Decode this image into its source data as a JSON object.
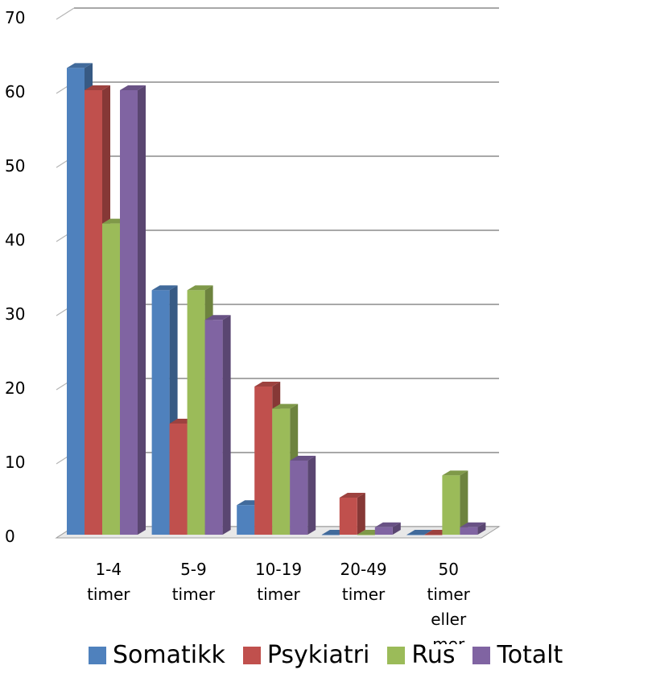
{
  "chart_data": {
    "type": "bar",
    "title": "",
    "xlabel": "",
    "ylabel": "",
    "ylim": [
      0,
      70
    ],
    "yticks": [
      "0",
      "10",
      "20",
      "30",
      "40",
      "50",
      "60",
      "70"
    ],
    "categories": [
      [
        "1-4",
        "timer"
      ],
      [
        "5-9",
        "timer"
      ],
      [
        "10-19",
        "timer"
      ],
      [
        "20-49",
        "timer"
      ],
      [
        "50",
        "timer",
        "eller",
        "mer"
      ]
    ],
    "series": [
      {
        "name": "Somatikk",
        "color": "#4F81BD",
        "values": [
          63,
          33,
          4,
          0,
          0
        ]
      },
      {
        "name": "Psykiatri",
        "color": "#C0504D",
        "values": [
          60,
          15,
          20,
          5,
          0
        ]
      },
      {
        "name": "Rus",
        "color": "#9BBB59",
        "values": [
          42,
          33,
          17,
          0,
          8
        ]
      },
      {
        "name": "Totalt",
        "color": "#8064A2",
        "values": [
          60,
          29,
          10,
          1,
          1
        ]
      }
    ],
    "grid": true,
    "legend_position": "bottom"
  }
}
